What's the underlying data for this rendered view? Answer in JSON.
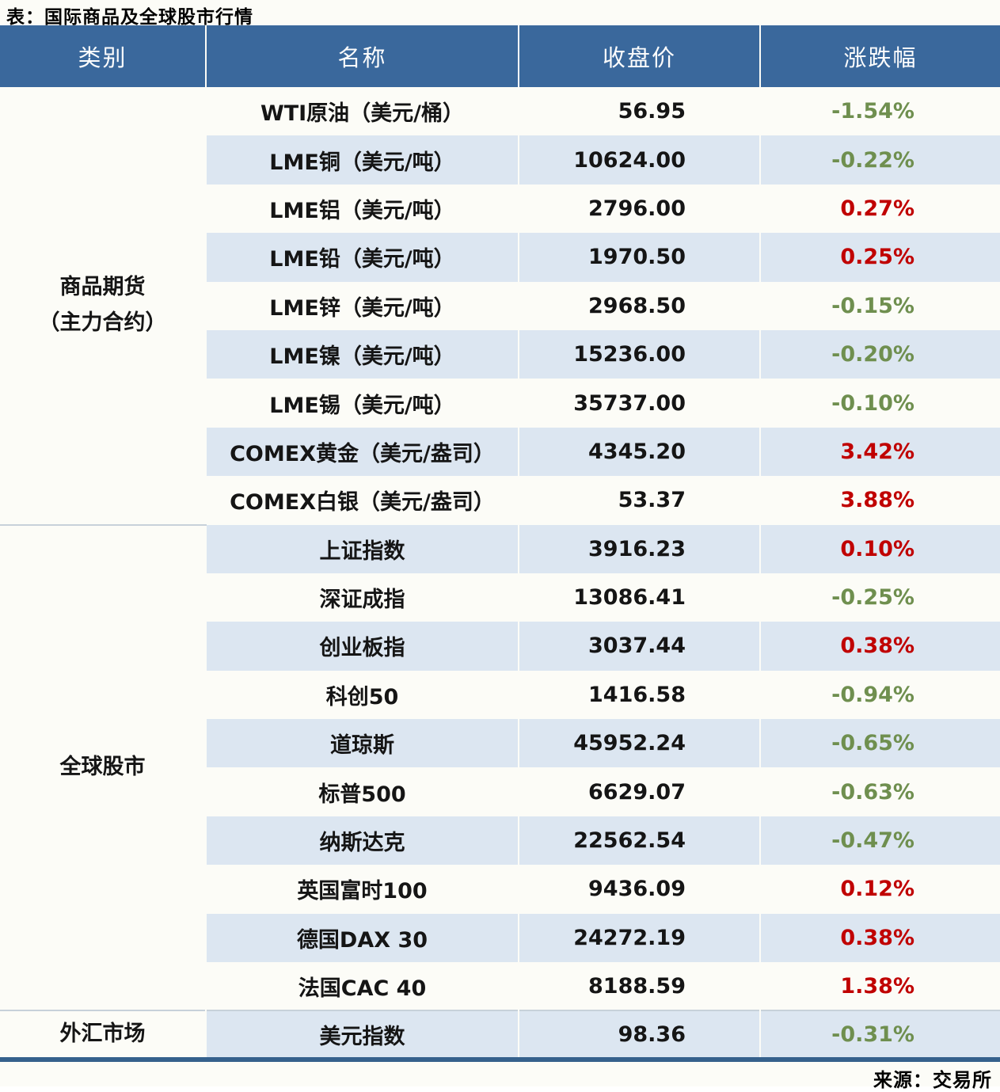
{
  "page": {
    "title": "表：国际商品及全球股市行情",
    "source": "来源：交易所"
  },
  "colors": {
    "header_bg": "#3a689c",
    "stripe_bg": "#dce6f1",
    "positive_change": "#c00000",
    "negative_change": "#6f8f4f",
    "bottom_rule": "#35618c"
  },
  "table": {
    "headers": {
      "category": "类别",
      "name": "名称",
      "close": "收盘价",
      "change": "涨跌幅"
    },
    "categories": [
      {
        "label": "商品期货（主力合约）",
        "line1": "商品期货",
        "line2": "（主力合约）",
        "rows": 9
      },
      {
        "label": "全球股市",
        "rows": 10
      },
      {
        "label": "外汇市场",
        "rows": 1
      }
    ],
    "rows": [
      {
        "name": "WTI原油（美元/桶）",
        "close": "56.95",
        "change": "-1.54%",
        "direction": "down"
      },
      {
        "name": "LME铜（美元/吨）",
        "close": "10624.00",
        "change": "-0.22%",
        "direction": "down"
      },
      {
        "name": "LME铝（美元/吨）",
        "close": "2796.00",
        "change": "0.27%",
        "direction": "up"
      },
      {
        "name": "LME铅（美元/吨）",
        "close": "1970.50",
        "change": "0.25%",
        "direction": "up"
      },
      {
        "name": "LME锌（美元/吨）",
        "close": "2968.50",
        "change": "-0.15%",
        "direction": "down"
      },
      {
        "name": "LME镍（美元/吨）",
        "close": "15236.00",
        "change": "-0.20%",
        "direction": "down"
      },
      {
        "name": "LME锡（美元/吨）",
        "close": "35737.00",
        "change": "-0.10%",
        "direction": "down"
      },
      {
        "name": "COMEX黄金（美元/盎司）",
        "close": "4345.20",
        "change": "3.42%",
        "direction": "up"
      },
      {
        "name": "COMEX白银（美元/盎司）",
        "close": "53.37",
        "change": "3.88%",
        "direction": "up"
      },
      {
        "name": "上证指数",
        "close": "3916.23",
        "change": "0.10%",
        "direction": "up"
      },
      {
        "name": "深证成指",
        "close": "13086.41",
        "change": "-0.25%",
        "direction": "down"
      },
      {
        "name": "创业板指",
        "close": "3037.44",
        "change": "0.38%",
        "direction": "up"
      },
      {
        "name": "科创50",
        "close": "1416.58",
        "change": "-0.94%",
        "direction": "down"
      },
      {
        "name": "道琼斯",
        "close": "45952.24",
        "change": "-0.65%",
        "direction": "down"
      },
      {
        "name": "标普500",
        "close": "6629.07",
        "change": "-0.63%",
        "direction": "down"
      },
      {
        "name": "纳斯达克",
        "close": "22562.54",
        "change": "-0.47%",
        "direction": "down"
      },
      {
        "name": "英国富时100",
        "close": "9436.09",
        "change": "0.12%",
        "direction": "up"
      },
      {
        "name": "德国DAX 30",
        "close": "24272.19",
        "change": "0.38%",
        "direction": "up"
      },
      {
        "name": "法国CAC 40",
        "close": "8188.59",
        "change": "1.38%",
        "direction": "up"
      },
      {
        "name": "美元指数",
        "close": "98.36",
        "change": "-0.31%",
        "direction": "down"
      }
    ]
  }
}
